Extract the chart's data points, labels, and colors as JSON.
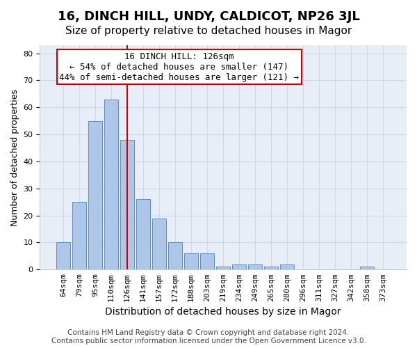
{
  "title": "16, DINCH HILL, UNDY, CALDICOT, NP26 3JL",
  "subtitle": "Size of property relative to detached houses in Magor",
  "xlabel": "Distribution of detached houses by size in Magor",
  "ylabel": "Number of detached properties",
  "bar_labels": [
    "64sqm",
    "79sqm",
    "95sqm",
    "110sqm",
    "126sqm",
    "141sqm",
    "157sqm",
    "172sqm",
    "188sqm",
    "203sqm",
    "219sqm",
    "234sqm",
    "249sqm",
    "265sqm",
    "280sqm",
    "296sqm",
    "311sqm",
    "327sqm",
    "342sqm",
    "358sqm",
    "373sqm"
  ],
  "bar_values": [
    10,
    25,
    55,
    63,
    48,
    26,
    19,
    10,
    6,
    6,
    1,
    2,
    2,
    1,
    2,
    0,
    0,
    0,
    0,
    1,
    0
  ],
  "bar_color": "#aec6e8",
  "bar_edge_color": "#5a8fc2",
  "vline_x": 4,
  "vline_color": "#cc0000",
  "annotation_text": "16 DINCH HILL: 126sqm\n← 54% of detached houses are smaller (147)\n44% of semi-detached houses are larger (121) →",
  "annotation_box_color": "#ffffff",
  "annotation_box_edgecolor": "#cc0000",
  "ylim": [
    0,
    83
  ],
  "yticks": [
    0,
    10,
    20,
    30,
    40,
    50,
    60,
    70,
    80
  ],
  "grid_color": "#d0d8e8",
  "bg_color": "#e8eef8",
  "footer": "Contains HM Land Registry data © Crown copyright and database right 2024.\nContains public sector information licensed under the Open Government Licence v3.0.",
  "title_fontsize": 13,
  "subtitle_fontsize": 11,
  "xlabel_fontsize": 10,
  "ylabel_fontsize": 9,
  "tick_fontsize": 8,
  "annotation_fontsize": 9,
  "footer_fontsize": 7.5
}
